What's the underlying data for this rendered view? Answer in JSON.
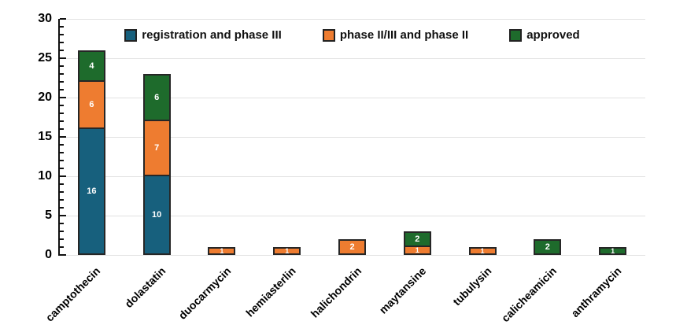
{
  "chart_data": {
    "type": "bar",
    "stacked": true,
    "title": "",
    "xlabel": "",
    "ylabel": "",
    "categories": [
      "camptothecin",
      "dolastatin",
      "duocarmycin",
      "hemiasterlin",
      "halichondrin",
      "maytansine",
      "tubulysin",
      "calicheamicin",
      "anthramycin"
    ],
    "series": [
      {
        "name": "registration and phase III",
        "color": "#17607D",
        "values": [
          16,
          10,
          0,
          0,
          0,
          0,
          0,
          0,
          0
        ]
      },
      {
        "name": "phase II/III and phase II",
        "color": "#EE7C30",
        "values": [
          6,
          7,
          1,
          1,
          2,
          1,
          1,
          0,
          0
        ]
      },
      {
        "name": "approved",
        "color": "#1E6B2C",
        "values": [
          4,
          6,
          0,
          0,
          0,
          2,
          0,
          2,
          1
        ]
      }
    ],
    "totals": [
      26,
      23,
      1,
      1,
      2,
      3,
      1,
      2,
      1
    ],
    "ylim": [
      0,
      30
    ],
    "yticks": [
      0,
      5,
      10,
      15,
      20,
      25,
      30
    ],
    "minor_tick_step": 1,
    "grid": true,
    "legend_position": "top-center",
    "value_label_color": "#ffffff",
    "segment_border_color": "#262626",
    "gridline_color": "#e2e2e2",
    "axis_color": "#111111"
  }
}
